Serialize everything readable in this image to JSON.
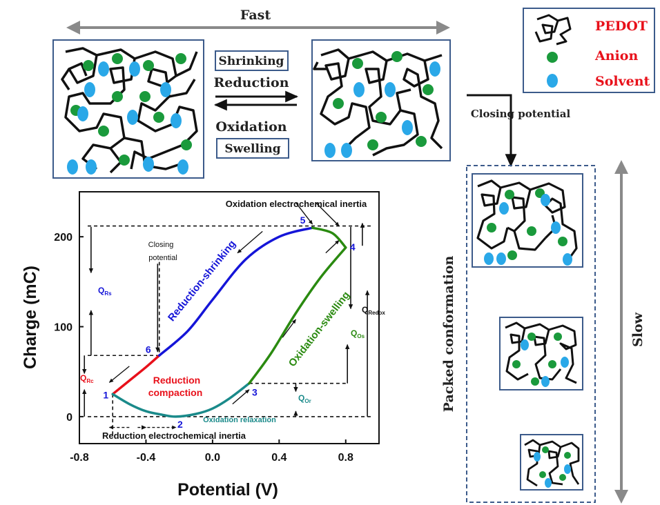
{
  "colors": {
    "pedot": "#111111",
    "anion": "#1a9a3c",
    "solvent": "#2aa8e8",
    "frame": "#3b5a8a",
    "grey_arrow": "#8a8a8a",
    "red": "#e8101a",
    "blue": "#1515d8",
    "green": "#2a8a10",
    "teal": "#1a8a8a",
    "legend_text": "#e8101a"
  },
  "top": {
    "fast_label": "Fast",
    "shrinking_label": "Shrinking",
    "reduction_label": "Reduction",
    "oxidation_label": "Oxidation",
    "swelling_label": "Swelling"
  },
  "legend": {
    "pedot_label": "PEDOT",
    "anion_label": "Anion",
    "solvent_label": "Solvent"
  },
  "right": {
    "closing_potential_label": "Closing potential",
    "packed_label": "Packed conformation",
    "slow_label": "Slow"
  },
  "chart": {
    "xlabel": "Potential (V)",
    "ylabel": "Charge (mC)",
    "x_ticks": [
      "-0.8",
      "-0.4",
      "0.0",
      "0.4",
      "0.8"
    ],
    "y_ticks": [
      "0",
      "100",
      "200"
    ],
    "annotations": {
      "ox_inertia": "Oxidation electrochemical inertia",
      "red_inertia": "Reduction electrochemical inertia",
      "closing_line1": "Closing",
      "closing_line2": "potential",
      "reduction_shrinking": "Reduction-shrinking",
      "reduction_compaction_1": "Reduction",
      "reduction_compaction_2": "compaction",
      "oxidation_swelling": "Oxidation-swelling",
      "oxidation_relaxation": "Oxidation relaxation",
      "q_rs": "Q",
      "q_rs_sub": "Rs",
      "q_rc": "Q",
      "q_rc_sub": "Rc",
      "q_redox": "Q",
      "q_redox_sub": "Redox",
      "q_os": "Q",
      "q_os_sub": "Os",
      "q_or": "Q",
      "q_or_sub": "Or",
      "p1": "1",
      "p2": "2",
      "p3": "3",
      "p4": "4",
      "p5": "5",
      "p6": "6"
    }
  },
  "chart_data": {
    "type": "line",
    "xlabel": "Potential (V)",
    "ylabel": "Charge (mC)",
    "xlim": [
      -0.8,
      1.0
    ],
    "ylim": [
      -30,
      250
    ],
    "x_ticks": [
      -0.8,
      -0.4,
      0.0,
      0.4,
      0.8
    ],
    "y_ticks": [
      0,
      100,
      200
    ],
    "series": [
      {
        "segment": "reduction-compaction",
        "color": "#e8101a",
        "x": [
          -0.32,
          -0.4,
          -0.5,
          -0.6
        ],
        "y": [
          68,
          55,
          40,
          25
        ]
      },
      {
        "segment": "reduction-shrinking",
        "color": "#1515d8",
        "x": [
          0.6,
          0.4,
          0.2,
          0.0,
          -0.15,
          -0.32
        ],
        "y": [
          210,
          200,
          175,
          130,
          95,
          68
        ]
      },
      {
        "segment": "oxidation-relaxation",
        "color": "#1a8a8a",
        "x": [
          -0.6,
          -0.5,
          -0.4,
          -0.3,
          -0.22,
          -0.1,
          0.0,
          0.1,
          0.22
        ],
        "y": [
          25,
          14,
          6,
          2,
          0,
          3,
          9,
          20,
          37
        ]
      },
      {
        "segment": "oxidation-swelling",
        "color": "#2a8a10",
        "x": [
          0.22,
          0.35,
          0.5,
          0.65,
          0.8
        ],
        "y": [
          37,
          70,
          115,
          155,
          188
        ]
      },
      {
        "segment": "oxidation-inertia",
        "color": "#2a8a10",
        "x": [
          0.8,
          0.72,
          0.6
        ],
        "y": [
          188,
          204,
          210
        ]
      }
    ],
    "points": [
      {
        "label": "1",
        "x": -0.6,
        "y": 25
      },
      {
        "label": "2",
        "x": -0.22,
        "y": 0
      },
      {
        "label": "3",
        "x": 0.22,
        "y": 37
      },
      {
        "label": "4",
        "x": 0.8,
        "y": 188
      },
      {
        "label": "5",
        "x": 0.6,
        "y": 210
      },
      {
        "label": "6",
        "x": -0.32,
        "y": 68
      }
    ]
  }
}
